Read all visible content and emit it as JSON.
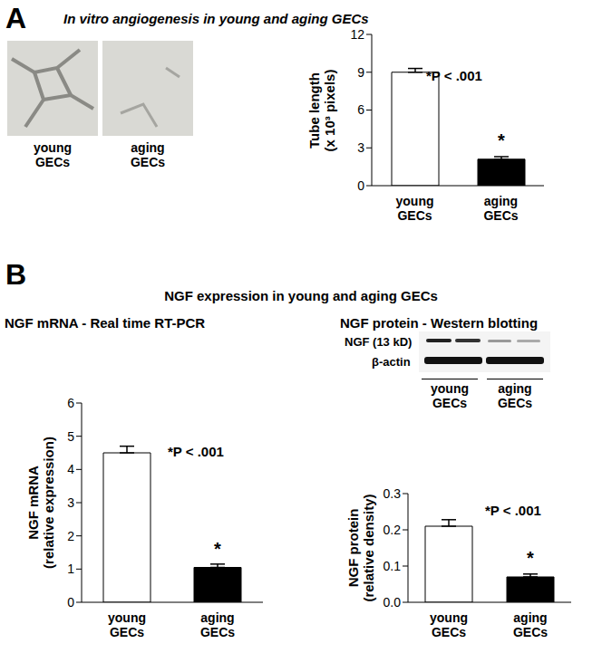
{
  "panels": [
    {
      "label": "A",
      "title": "In vitro angiogenesis in young and aging GECs",
      "images": [
        "young GECs",
        "aging GECs"
      ]
    },
    {
      "label": "B",
      "title": "NGF expression in young and aging GECs",
      "blot": {
        "rows": [
          "NGF (13 kD)",
          "β-actin"
        ],
        "groups": [
          "young GECs",
          "aging GECs"
        ]
      }
    }
  ],
  "chart_data": [
    {
      "type": "bar",
      "ylabel": "Tube length (x 10³ pixels)",
      "categories": [
        "young GECs",
        "aging GECs"
      ],
      "values": [
        9.0,
        2.1
      ],
      "errors": [
        0.3,
        0.2
      ],
      "colors": [
        "#ffffff",
        "#000000"
      ],
      "ylim": [
        0,
        12
      ],
      "yticks": [
        0,
        3,
        6,
        9,
        12
      ],
      "annotations": [
        {
          "text": "*P < .001"
        },
        {
          "text": "*",
          "category": "aging GECs"
        }
      ]
    },
    {
      "type": "bar",
      "title": "NGF mRNA - Real time RT-PCR",
      "ylabel": "NGF mRNA (relative expression)",
      "categories": [
        "young GECs",
        "aging GECs"
      ],
      "values": [
        4.5,
        1.05
      ],
      "errors": [
        0.2,
        0.1
      ],
      "colors": [
        "#ffffff",
        "#000000"
      ],
      "ylim": [
        0,
        6
      ],
      "yticks": [
        0,
        1,
        2,
        3,
        4,
        5,
        6
      ],
      "annotations": [
        {
          "text": "*P < .001"
        },
        {
          "text": "*",
          "category": "aging GECs"
        }
      ]
    },
    {
      "type": "bar",
      "title": "NGF protein - Western blotting",
      "ylabel": "NGF protein (relative density)",
      "categories": [
        "young GECs",
        "aging GECs"
      ],
      "values": [
        0.21,
        0.07
      ],
      "errors": [
        0.018,
        0.008
      ],
      "colors": [
        "#ffffff",
        "#000000"
      ],
      "ylim": [
        0,
        0.3
      ],
      "yticks": [
        {
          "value": 0,
          "label": "0.0"
        },
        0.1,
        0.2,
        0.3
      ],
      "annotations": [
        {
          "text": "*P < .001"
        },
        {
          "text": "*",
          "category": "aging GECs"
        }
      ]
    }
  ]
}
